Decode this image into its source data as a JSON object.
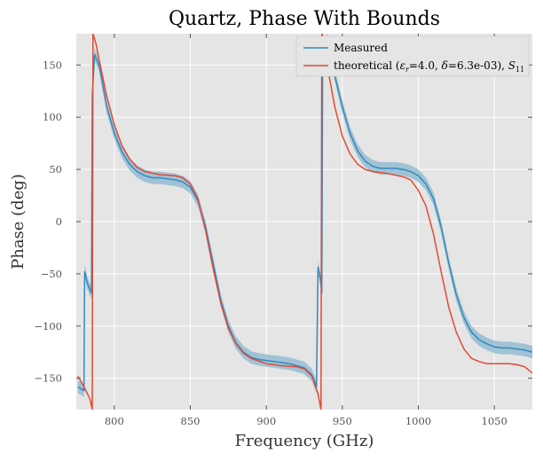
{
  "chart_data": {
    "type": "line",
    "title": "Quartz, Phase With Bounds",
    "xlabel": "Frequency (GHz)",
    "ylabel": "Phase (deg)",
    "xlim": [
      775,
      1075
    ],
    "ylim": [
      -180,
      180
    ],
    "xticks": [
      800,
      850,
      900,
      950,
      1000,
      1050
    ],
    "yticks": [
      150,
      100,
      50,
      0,
      -50,
      -100,
      -150
    ],
    "ytick_labels": [
      "150",
      "100",
      "50",
      "0",
      "−50",
      "−100",
      "−150"
    ],
    "grid": true,
    "legend_position": "top-right",
    "band_color": "#8ab6cf",
    "series": [
      {
        "name": "Measured",
        "color": "#348abd",
        "band_halfwidth": 6,
        "x": [
          776,
          778,
          780,
          780.5,
          781,
          782,
          784,
          785,
          785.5,
          787,
          790,
          795,
          800,
          805,
          810,
          815,
          820,
          825,
          830,
          835,
          840,
          845,
          850,
          855,
          860,
          865,
          870,
          875,
          880,
          885,
          890,
          895,
          900,
          905,
          910,
          915,
          920,
          925,
          930,
          933,
          934,
          935,
          936,
          936.5,
          937,
          940,
          945,
          950,
          955,
          960,
          965,
          970,
          975,
          980,
          985,
          990,
          995,
          1000,
          1005,
          1010,
          1015,
          1020,
          1025,
          1030,
          1035,
          1040,
          1045,
          1050,
          1055,
          1060,
          1065,
          1070,
          1075
        ],
        "y": [
          -158,
          -160,
          -162,
          -48,
          -50,
          -58,
          -65,
          -68,
          120,
          160,
          150,
          110,
          85,
          67,
          55,
          48,
          44,
          42,
          42,
          41,
          40,
          38,
          33,
          20,
          -5,
          -40,
          -75,
          -100,
          -116,
          -125,
          -130,
          -132,
          -133,
          -134,
          -135,
          -136,
          -138,
          -140,
          -147,
          -158,
          -44,
          -50,
          -60,
          -68,
          150,
          175,
          140,
          110,
          85,
          68,
          58,
          53,
          51,
          51,
          51,
          50,
          48,
          44,
          36,
          22,
          -5,
          -40,
          -70,
          -92,
          -106,
          -113,
          -117,
          -120,
          -121,
          -121,
          -122,
          -123,
          -125
        ]
      },
      {
        "name": "theoretical (εr=4.0, δ=6.3e-03), S11",
        "color": "#e24a33",
        "x": [
          776,
          780,
          784,
          785.5,
          786,
          788,
          790,
          795,
          800,
          805,
          810,
          815,
          820,
          830,
          840,
          845,
          850,
          855,
          860,
          865,
          870,
          875,
          880,
          885,
          890,
          900,
          910,
          920,
          925,
          930,
          934,
          936,
          936.5,
          937,
          940,
          945,
          950,
          955,
          960,
          965,
          970,
          975,
          980,
          990,
          995,
          1000,
          1005,
          1010,
          1015,
          1020,
          1025,
          1030,
          1035,
          1040,
          1045,
          1050,
          1055,
          1060,
          1065,
          1070,
          1075
        ],
        "y": [
          -148,
          -158,
          -170,
          -180,
          180,
          170,
          155,
          120,
          93,
          73,
          60,
          52,
          48,
          45,
          44,
          42,
          36,
          22,
          -8,
          -45,
          -78,
          -102,
          -117,
          -126,
          -131,
          -136,
          -138,
          -139,
          -141,
          -148,
          -165,
          -180,
          180,
          178,
          150,
          110,
          82,
          65,
          55,
          50,
          48,
          47,
          46,
          43,
          40,
          30,
          15,
          -12,
          -48,
          -82,
          -106,
          -122,
          -131,
          -134,
          -136,
          -136,
          -136,
          -136,
          -137,
          -139,
          -145
        ]
      }
    ],
    "legend": [
      {
        "label": "Measured"
      },
      {
        "label_parts": [
          "theoretical (",
          "ε",
          "r",
          "=4.0, ",
          "δ",
          "=6.3e-03), ",
          "S",
          "11"
        ]
      }
    ]
  }
}
